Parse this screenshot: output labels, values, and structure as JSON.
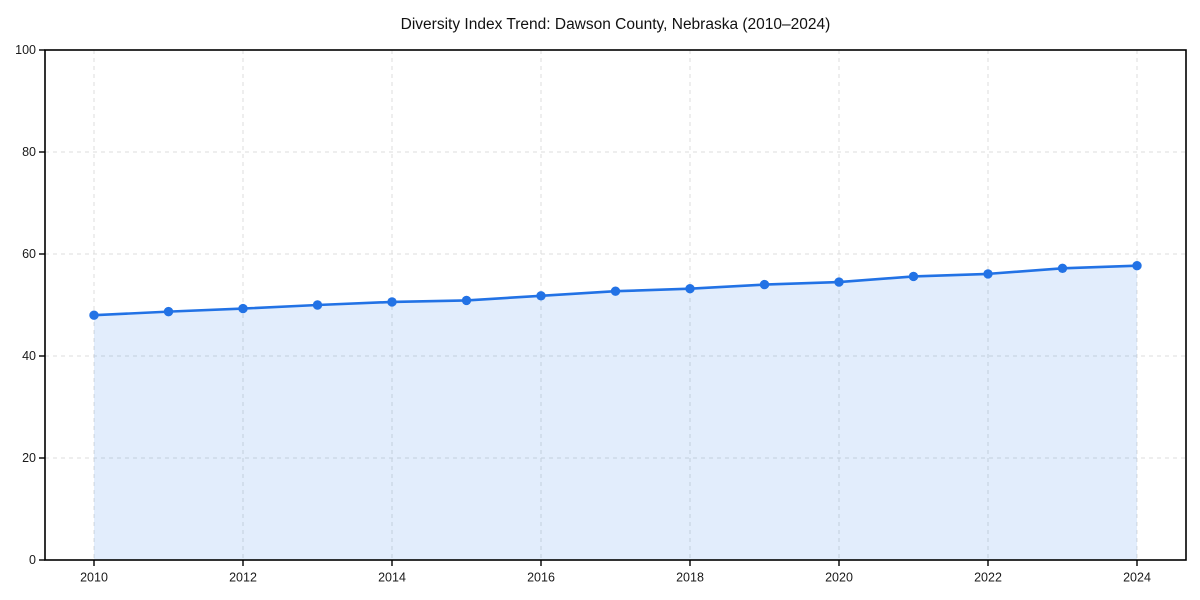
{
  "chart_data": {
    "type": "area",
    "title": "Diversity Index Trend: Dawson County, Nebraska (2010–2024)",
    "series_name": "Diversity Index",
    "x": [
      2010,
      2011,
      2012,
      2013,
      2014,
      2015,
      2016,
      2017,
      2018,
      2019,
      2020,
      2021,
      2022,
      2023,
      2024
    ],
    "values": [
      48.0,
      48.7,
      49.3,
      50.0,
      50.6,
      50.9,
      51.8,
      52.7,
      53.2,
      54.0,
      54.5,
      55.6,
      56.1,
      57.2,
      57.7
    ],
    "xlabel": "",
    "ylabel": "",
    "xlim": [
      2009.34,
      2024.66
    ],
    "ylim": [
      0,
      100
    ],
    "xticks": [
      2010,
      2012,
      2014,
      2016,
      2018,
      2020,
      2022,
      2024
    ],
    "yticks": [
      0,
      20,
      40,
      60,
      80,
      100
    ],
    "grid": true,
    "grid_style": "dashed",
    "legend": false,
    "marker": "circle",
    "colors": {
      "line": "#2272e5",
      "fill": "rgba(34,114,229,0.13)",
      "grid": "#dcdcdc",
      "axis": "#000000",
      "tick_text": "#1a1a1a",
      "title_text": "#111111",
      "background": "#ffffff"
    }
  }
}
